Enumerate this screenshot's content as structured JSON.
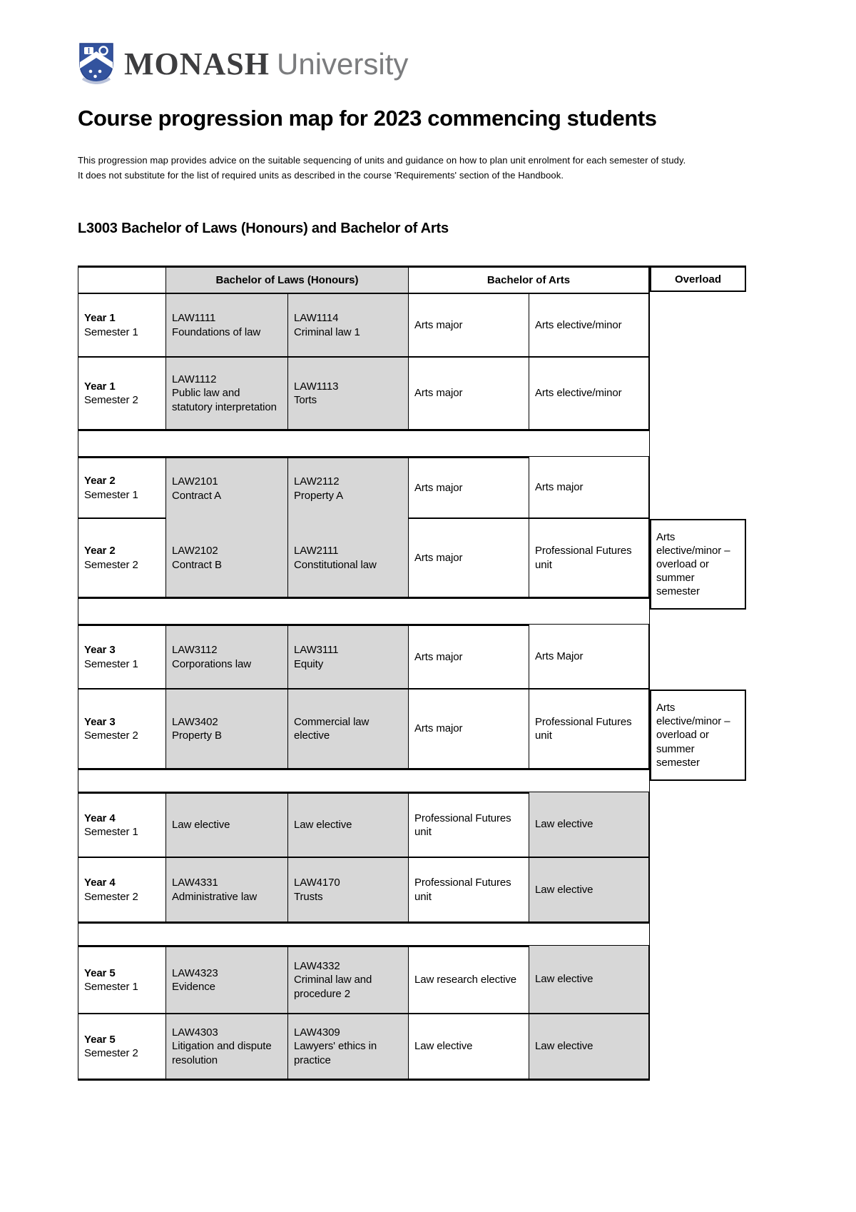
{
  "logo": {
    "wordmark_bold": "MONASH",
    "wordmark_light": "University"
  },
  "title": "Course progression map for 2023 commencing students",
  "intro": {
    "line1": "This progression map provides advice on the suitable sequencing of units and guidance on how to plan unit enrolment for each semester of study.",
    "line2": "It does not substitute for the list of required units as described in the course 'Requirements' section of the Handbook."
  },
  "section_heading": "L3003 Bachelor of Laws (Honours) and Bachelor of Arts",
  "table": {
    "headers": {
      "laws": "Bachelor of Laws (Honours)",
      "arts": "Bachelor of Arts",
      "overload": "Overload"
    },
    "blocks": [
      {
        "rows": [
          {
            "year": "Year 1",
            "semester": "Semester 1",
            "cells": [
              {
                "text": "LAW1111\nFoundations of law",
                "grey": true
              },
              {
                "text": "LAW1114\nCriminal law 1",
                "grey": true
              },
              {
                "text": "Arts major",
                "grey": false
              },
              {
                "text": "Arts elective/minor",
                "grey": false
              }
            ],
            "overload": null
          },
          {
            "year": "Year 1",
            "semester": "Semester 2",
            "cells": [
              {
                "text": "LAW1112\nPublic law and statutory interpretation",
                "grey": true
              },
              {
                "text": "LAW1113\nTorts",
                "grey": true
              },
              {
                "text": "Arts major",
                "grey": false
              },
              {
                "text": "Arts elective/minor",
                "grey": false
              }
            ],
            "overload": null
          }
        ]
      },
      {
        "rows": [
          {
            "year": "Year 2",
            "semester": "Semester 1",
            "cells": [
              {
                "text": "LAW2101\nContract A",
                "grey": true
              },
              {
                "text": "LAW2112\nProperty A",
                "grey": true
              },
              {
                "text": "Arts major",
                "grey": false
              },
              {
                "text": "Arts major",
                "grey": false
              }
            ],
            "overload": null
          },
          {
            "year": "Year 2",
            "semester": "Semester 2",
            "cells": [
              {
                "text": "LAW2102\nContract B",
                "grey": true
              },
              {
                "text": "LAW2111\nConstitutional law",
                "grey": true
              },
              {
                "text": "Arts major",
                "grey": false
              },
              {
                "text": "Professional Futures unit",
                "grey": false
              }
            ],
            "overload": "Arts elective/minor – overload or summer semester"
          }
        ]
      },
      {
        "rows": [
          {
            "year": "Year 3",
            "semester": "Semester 1",
            "cells": [
              {
                "text": "LAW3112\nCorporations law",
                "grey": true
              },
              {
                "text": "LAW3111\nEquity",
                "grey": true
              },
              {
                "text": "Arts major",
                "grey": false
              },
              {
                "text": "Arts Major",
                "grey": false
              }
            ],
            "overload": null
          },
          {
            "year": "Year 3",
            "semester": "Semester 2",
            "cells": [
              {
                "text": "LAW3402\nProperty B",
                "grey": true
              },
              {
                "text": "Commercial law elective",
                "grey": true
              },
              {
                "text": "Arts major",
                "grey": false
              },
              {
                "text": "Professional Futures unit",
                "grey": false
              }
            ],
            "overload": "Arts elective/minor – overload or summer semester"
          }
        ]
      },
      {
        "rows": [
          {
            "year": "Year 4",
            "semester": "Semester 1",
            "cells": [
              {
                "text": "Law elective",
                "grey": true
              },
              {
                "text": "Law elective",
                "grey": true
              },
              {
                "text": "Professional Futures unit",
                "grey": false
              },
              {
                "text": "Law elective",
                "grey": true
              }
            ],
            "overload": null
          },
          {
            "year": "Year 4",
            "semester": "Semester 2",
            "cells": [
              {
                "text": "LAW4331\nAdministrative law",
                "grey": true
              },
              {
                "text": "LAW4170\nTrusts",
                "grey": true
              },
              {
                "text": "Professional Futures unit",
                "grey": false
              },
              {
                "text": "Law elective",
                "grey": true
              }
            ],
            "overload": null
          }
        ]
      },
      {
        "rows": [
          {
            "year": "Year 5",
            "semester": "Semester 1",
            "cells": [
              {
                "text": "LAW4323\nEvidence",
                "grey": true
              },
              {
                "text": "LAW4332\nCriminal law and procedure 2",
                "grey": true
              },
              {
                "text": "Law research elective",
                "grey": false
              },
              {
                "text": "Law elective",
                "grey": true
              }
            ],
            "overload": null
          },
          {
            "year": "Year 5",
            "semester": "Semester 2",
            "cells": [
              {
                "text": "LAW4303\nLitigation and dispute resolution",
                "grey": true
              },
              {
                "text": "LAW4309\nLawyers' ethics in practice",
                "grey": true
              },
              {
                "text": "Law elective",
                "grey": false
              },
              {
                "text": "Law elective",
                "grey": true
              }
            ],
            "overload": null
          }
        ]
      }
    ]
  }
}
